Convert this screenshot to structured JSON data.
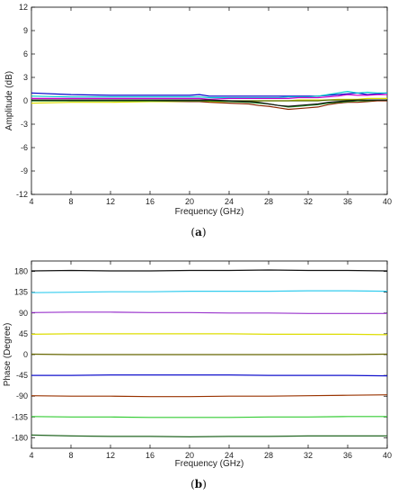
{
  "chart_data": [
    {
      "type": "line",
      "caption_open": "(",
      "caption": "a",
      "caption_close": ")",
      "title": "",
      "xlabel": "Frequency (GHz)",
      "ylabel": "Amplitude (dB)",
      "xlim": [
        4,
        40
      ],
      "ylim": [
        -12,
        12
      ],
      "xticks": [
        4,
        8,
        12,
        16,
        20,
        24,
        28,
        32,
        36,
        40
      ],
      "yticks": [
        12,
        9,
        6,
        3,
        0,
        -3,
        -6,
        -9,
        -12
      ],
      "grid": false,
      "x": [
        4,
        8,
        12,
        16,
        20,
        21,
        22,
        24,
        26,
        27,
        28,
        29,
        30,
        31,
        32,
        33,
        34,
        35,
        36,
        37,
        38,
        39,
        40
      ],
      "series": [
        {
          "color": "#0000cc",
          "values": [
            1.0,
            0.8,
            0.7,
            0.7,
            0.7,
            0.8,
            0.6,
            0.6,
            0.6,
            0.6,
            0.6,
            0.6,
            0.6,
            0.6,
            0.6,
            0.6,
            0.7,
            0.8,
            0.9,
            1.0,
            0.8,
            0.9,
            1.0
          ]
        },
        {
          "color": "#00cccc",
          "values": [
            0.6,
            0.5,
            0.5,
            0.5,
            0.5,
            0.5,
            0.4,
            0.4,
            0.4,
            0.4,
            0.4,
            0.4,
            0.5,
            0.5,
            0.5,
            0.6,
            0.8,
            1.0,
            1.2,
            1.0,
            1.1,
            1.0,
            1.0
          ]
        },
        {
          "color": "#cc00cc",
          "values": [
            0.3,
            0.3,
            0.3,
            0.3,
            0.3,
            0.3,
            0.2,
            0.3,
            0.3,
            0.3,
            0.3,
            0.3,
            0.3,
            0.4,
            0.4,
            0.4,
            0.5,
            0.6,
            0.8,
            0.7,
            0.7,
            0.8,
            0.8
          ]
        },
        {
          "color": "#dddd00",
          "values": [
            -0.3,
            -0.2,
            -0.2,
            -0.1,
            -0.1,
            -0.1,
            -0.1,
            -0.1,
            -0.1,
            0.0,
            0.0,
            0.0,
            0.0,
            0.1,
            0.1,
            0.1,
            0.1,
            0.2,
            0.2,
            0.2,
            0.3,
            0.3,
            0.3
          ]
        },
        {
          "color": "#556b00",
          "values": [
            0.0,
            0.0,
            0.0,
            0.0,
            0.0,
            0.0,
            0.0,
            0.0,
            0.0,
            0.0,
            0.0,
            0.0,
            0.0,
            0.0,
            0.0,
            0.0,
            0.1,
            0.1,
            0.1,
            0.1,
            0.1,
            0.1,
            0.1
          ]
        },
        {
          "color": "#8b2500",
          "values": [
            0.1,
            0.0,
            0.0,
            0.0,
            -0.1,
            -0.1,
            -0.2,
            -0.3,
            -0.4,
            -0.6,
            -0.7,
            -0.9,
            -1.1,
            -1.0,
            -0.9,
            -0.8,
            -0.5,
            -0.3,
            -0.2,
            -0.2,
            -0.1,
            0.0,
            0.0
          ]
        },
        {
          "color": "#228b22",
          "values": [
            0.0,
            0.0,
            0.0,
            0.0,
            0.0,
            0.0,
            0.0,
            -0.1,
            -0.2,
            -0.3,
            -0.4,
            -0.6,
            -0.8,
            -0.7,
            -0.6,
            -0.5,
            -0.3,
            -0.2,
            -0.1,
            0.0,
            0.0,
            0.1,
            0.1
          ]
        },
        {
          "color": "#111111",
          "values": [
            0.1,
            0.1,
            0.1,
            0.1,
            0.1,
            0.1,
            0.1,
            0.0,
            -0.1,
            -0.2,
            -0.4,
            -0.6,
            -0.7,
            -0.6,
            -0.5,
            -0.4,
            -0.2,
            -0.1,
            0.0,
            0.1,
            0.1,
            0.1,
            0.1
          ]
        }
      ]
    },
    {
      "type": "line",
      "caption_open": "(",
      "caption": "b",
      "caption_close": ")",
      "title": "",
      "xlabel": "Frequency (GHz)",
      "ylabel": "Phase (Degree)",
      "xlim": [
        4,
        40
      ],
      "ylim": [
        -202.5,
        202.5
      ],
      "xticks": [
        4,
        8,
        12,
        16,
        20,
        24,
        28,
        32,
        36,
        40
      ],
      "yticks": [
        180,
        135,
        90,
        45,
        0,
        -45,
        -90,
        -135,
        -180
      ],
      "grid": false,
      "x": [
        4,
        8,
        12,
        16,
        20,
        24,
        28,
        32,
        36,
        40
      ],
      "series": [
        {
          "color": "#111111",
          "values": [
            181,
            182,
            181,
            181,
            182,
            182,
            183,
            182,
            182,
            181
          ]
        },
        {
          "color": "#33ccee",
          "values": [
            134,
            135,
            136,
            136,
            137,
            137,
            137,
            138,
            138,
            137
          ]
        },
        {
          "color": "#9933cc",
          "values": [
            91,
            92,
            92,
            91,
            91,
            90,
            90,
            89,
            89,
            89
          ]
        },
        {
          "color": "#dddd00",
          "values": [
            44,
            45,
            45,
            45,
            45,
            45,
            44,
            44,
            44,
            43
          ]
        },
        {
          "color": "#666600",
          "values": [
            1,
            0,
            0,
            0,
            0,
            0,
            0,
            0,
            0,
            1
          ]
        },
        {
          "color": "#1111cc",
          "values": [
            -45,
            -45,
            -44,
            -44,
            -44,
            -44,
            -45,
            -45,
            -45,
            -46
          ]
        },
        {
          "color": "#993300",
          "values": [
            -89,
            -90,
            -90,
            -91,
            -91,
            -90,
            -90,
            -89,
            -88,
            -87
          ]
        },
        {
          "color": "#33cc33",
          "values": [
            -134,
            -135,
            -135,
            -136,
            -136,
            -136,
            -135,
            -135,
            -134,
            -134
          ]
        },
        {
          "color": "#226622",
          "values": [
            -174,
            -176,
            -177,
            -177,
            -178,
            -177,
            -177,
            -176,
            -176,
            -176
          ]
        }
      ]
    }
  ]
}
